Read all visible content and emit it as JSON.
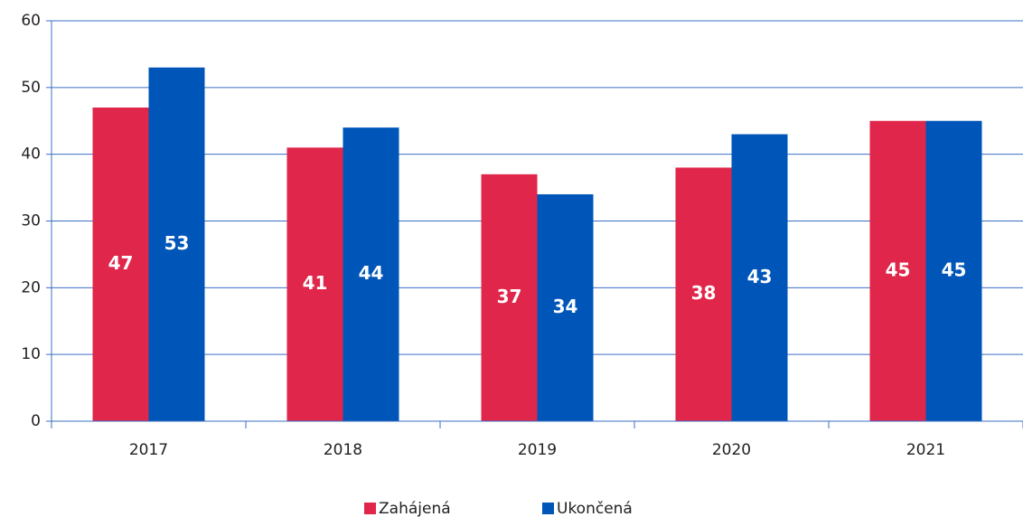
{
  "chart_data": {
    "type": "bar",
    "categories": [
      "2017",
      "2018",
      "2019",
      "2020",
      "2021"
    ],
    "series": [
      {
        "name": "Zahájená",
        "color": "#e0264a",
        "values": [
          47,
          41,
          37,
          38,
          45
        ]
      },
      {
        "name": "Ukončená",
        "color": "#0056b8",
        "values": [
          53,
          44,
          34,
          43,
          45
        ]
      }
    ],
    "ylim": [
      0,
      60
    ],
    "yticks": [
      0,
      10,
      20,
      30,
      40,
      50,
      60
    ],
    "grid": true,
    "legend": "bottom"
  }
}
